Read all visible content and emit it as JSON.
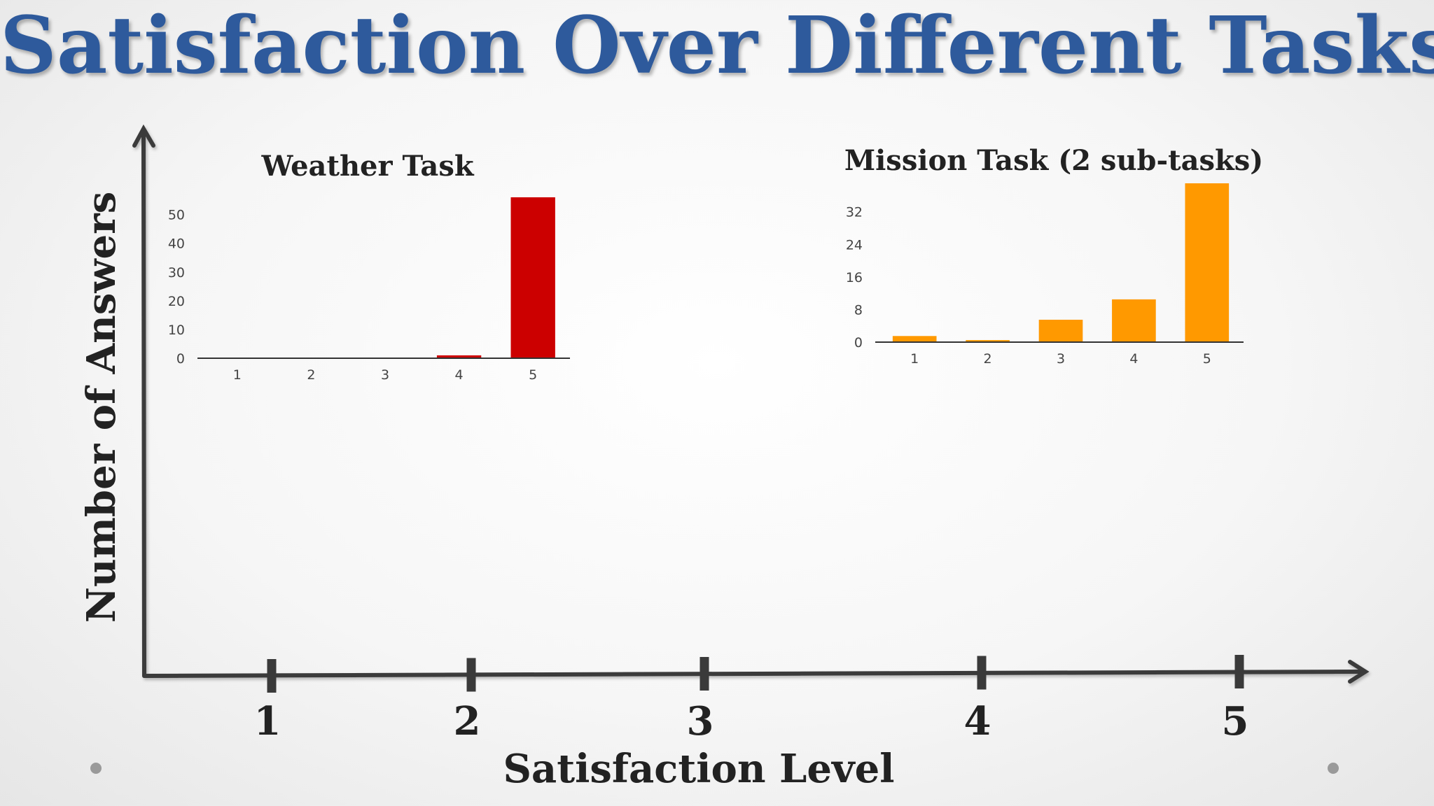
{
  "slide": {
    "title": "Satisfaction Over Different Tasks",
    "x_axis_label": "Satisfaction Level",
    "y_axis_label": "Number of Answers",
    "x_axis_ticks": [
      "1",
      "2",
      "3",
      "4",
      "5"
    ]
  },
  "chart_data": [
    {
      "type": "bar",
      "title": "Weather Task",
      "categories": [
        "1",
        "2",
        "3",
        "4",
        "5"
      ],
      "values": [
        0,
        0,
        0,
        1,
        56
      ],
      "yticks": [
        0,
        10,
        20,
        30,
        40,
        50
      ],
      "ylim": [
        0,
        56
      ],
      "color": "#cc0000",
      "grid": false
    },
    {
      "type": "bar",
      "title": "Mission Task (2 sub-tasks)",
      "categories": [
        "1",
        "2",
        "3",
        "4",
        "5"
      ],
      "values": [
        1.5,
        0.5,
        5.5,
        10.5,
        39
      ],
      "yticks": [
        0,
        8,
        16,
        24,
        32
      ],
      "ylim": [
        0,
        39
      ],
      "color": "#ff9900",
      "grid": false
    }
  ]
}
